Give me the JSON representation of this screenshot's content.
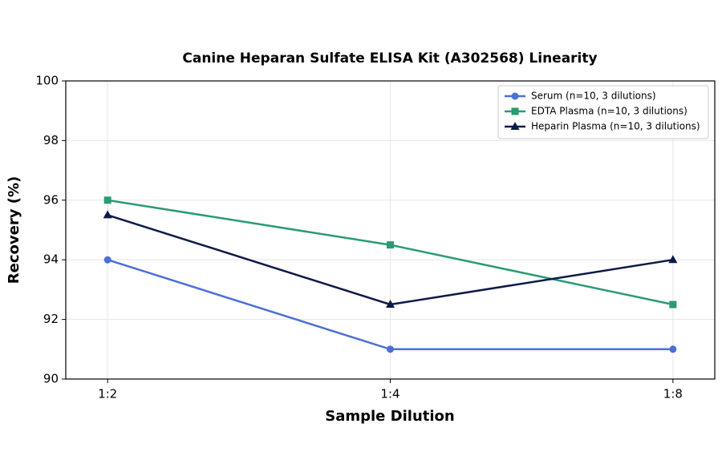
{
  "chart_data": {
    "type": "line",
    "title": "Canine Heparan Sulfate ELISA Kit (A302568) Linearity",
    "x_label": "Sample Dilution",
    "y_label": "Recovery (%)",
    "categories": [
      "1:2",
      "1:4",
      "1:8"
    ],
    "series": [
      {
        "name": "Serum (n=10, 3 dilutions)",
        "color": "#4b6fd6",
        "marker": "circle",
        "values": [
          94,
          91,
          91
        ]
      },
      {
        "name": "EDTA Plasma (n=10, 3 dilutions)",
        "color": "#2a9b72",
        "marker": "square",
        "values": [
          96,
          94.5,
          92.5
        ]
      },
      {
        "name": "Heparin Plasma (n=10, 3 dilutions)",
        "color": "#0c1a48",
        "marker": "triangle",
        "values": [
          95.5,
          92.5,
          94
        ]
      }
    ],
    "ylim": [
      90,
      100
    ],
    "yticks": [
      90,
      92,
      94,
      96,
      98,
      100
    ],
    "grid": true,
    "legend": "upper-right"
  }
}
